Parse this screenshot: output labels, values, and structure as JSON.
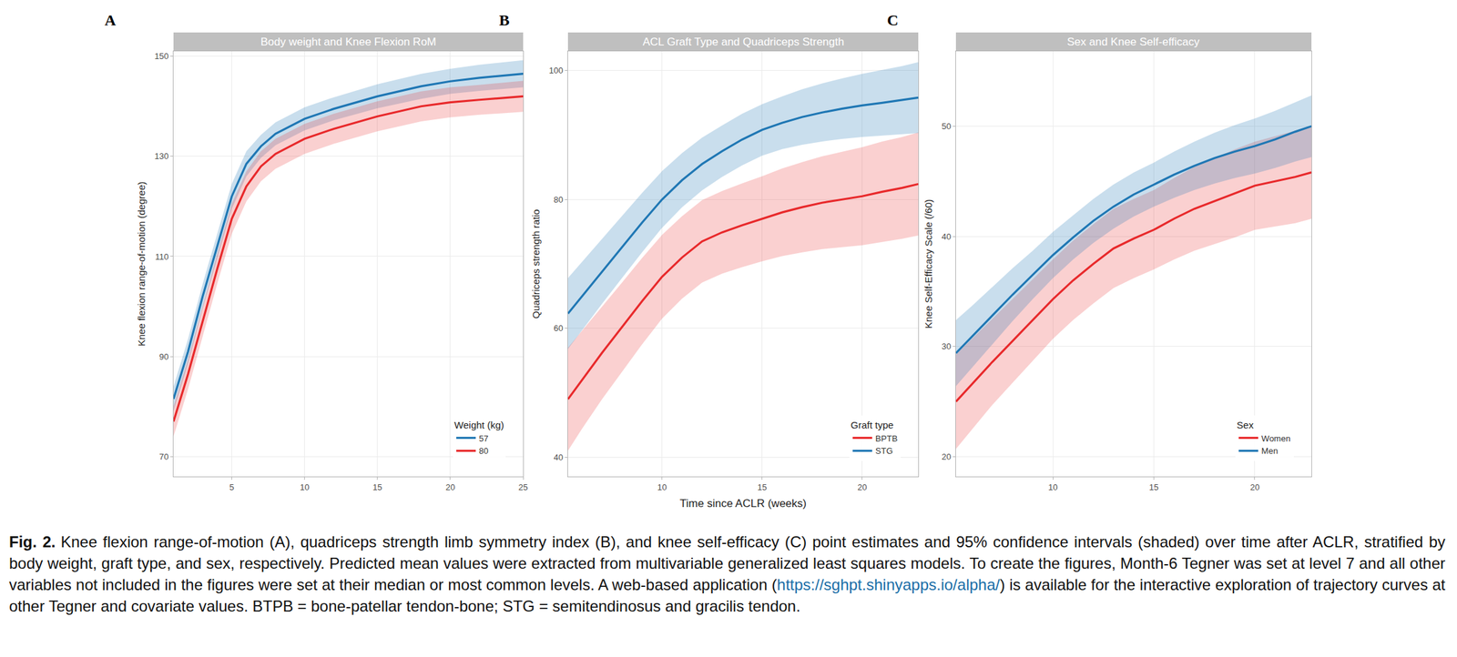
{
  "chart_data": [
    {
      "type": "line",
      "panel": "A",
      "title": "Body weight and Knee Flexion RoM",
      "y_label": "Knee flexion range-of-motion (degree)",
      "x": [
        1,
        2,
        3,
        4,
        5,
        6,
        7,
        8,
        9,
        10,
        12,
        15,
        18,
        20,
        22,
        25
      ],
      "xlim": [
        1,
        25
      ],
      "xticks": [
        5,
        10,
        15,
        20,
        25
      ],
      "ylim": [
        66,
        151
      ],
      "yticks": [
        70,
        90,
        110,
        130,
        150
      ],
      "grid": true,
      "legend": "bottom right",
      "legend_title": "Weight (kg)",
      "series": [
        {
          "name": "57",
          "color": "#1f77b4",
          "values": [
            81.5,
            91,
            102,
            112,
            122,
            128.5,
            132,
            134.5,
            136,
            137.5,
            139.5,
            142,
            144,
            145,
            145.7,
            146.5
          ],
          "lower": [
            79,
            88.5,
            99.5,
            109.5,
            119.5,
            126,
            129.7,
            132.2,
            133.7,
            135.2,
            137.2,
            139.6,
            141.5,
            142.5,
            143.1,
            143.8
          ],
          "upper": [
            84,
            93.5,
            104.5,
            114.5,
            124.5,
            131,
            134.3,
            136.8,
            138.3,
            139.8,
            141.8,
            144.4,
            146.5,
            147.5,
            148.3,
            149.2
          ]
        },
        {
          "name": "80",
          "color": "#e8292b",
          "values": [
            77,
            86.5,
            97,
            107.5,
            117.5,
            124,
            128,
            130.5,
            132,
            133.5,
            135.5,
            138,
            140,
            140.8,
            141.3,
            142
          ],
          "lower": [
            74,
            83.5,
            94,
            104.5,
            114.5,
            121,
            125,
            127.5,
            129,
            130.5,
            132.5,
            135,
            137,
            137.8,
            138.3,
            138.9
          ],
          "upper": [
            80,
            89.5,
            100,
            110.5,
            120.5,
            127,
            131,
            133.5,
            135,
            136.5,
            138.5,
            141,
            143,
            143.8,
            144.3,
            145.1
          ]
        }
      ]
    },
    {
      "type": "line",
      "panel": "B",
      "title": "ACL Graft Type and Quadriceps Strength",
      "x_label": "Time since ACLR (weeks)",
      "y_label": "Quadriceps strength ratio",
      "x": [
        5.3,
        6,
        7,
        8,
        9,
        10,
        11,
        12,
        13,
        14,
        15,
        16,
        17,
        18,
        19,
        20,
        21,
        22,
        22.8
      ],
      "xlim": [
        5.3,
        22.8
      ],
      "xticks": [
        10,
        15,
        20
      ],
      "ylim": [
        37,
        103
      ],
      "yticks": [
        40,
        60,
        80,
        100
      ],
      "grid": true,
      "legend": "bottom right",
      "legend_title": "Graft type",
      "series": [
        {
          "name": "BPTB",
          "color": "#e8292b",
          "values": [
            49,
            52,
            56.2,
            60.2,
            64.2,
            68,
            71,
            73.5,
            74.9,
            76,
            77,
            78,
            78.8,
            79.5,
            80,
            80.5,
            81.2,
            81.8,
            82.4
          ],
          "lower": [
            41,
            44.4,
            49,
            53.3,
            57.5,
            61.5,
            64.6,
            67.1,
            68.5,
            69.5,
            70.4,
            71.2,
            71.8,
            72.3,
            72.6,
            72.9,
            73.4,
            73.9,
            74.4
          ],
          "upper": [
            57,
            59.6,
            63.4,
            67.1,
            70.9,
            74.5,
            77.4,
            79.9,
            81.3,
            82.5,
            83.6,
            84.8,
            85.8,
            86.7,
            87.4,
            88.1,
            89,
            89.7,
            90.4
          ]
        },
        {
          "name": "STG",
          "color": "#1f77b4",
          "values": [
            62.3,
            65,
            68.8,
            72.6,
            76.4,
            80,
            83,
            85.5,
            87.5,
            89.3,
            90.8,
            91.9,
            92.8,
            93.5,
            94.1,
            94.6,
            95,
            95.4,
            95.8
          ],
          "lower": [
            56.8,
            59.7,
            63.8,
            67.8,
            71.8,
            75.6,
            78.8,
            81.4,
            83.5,
            85.3,
            86.8,
            87.8,
            88.5,
            89,
            89.4,
            89.7,
            89.9,
            90.1,
            90.3
          ],
          "upper": [
            67.8,
            70.3,
            73.8,
            77.4,
            81,
            84.4,
            87.2,
            89.6,
            91.5,
            93.3,
            94.8,
            96,
            97.1,
            98,
            98.8,
            99.5,
            100.1,
            100.7,
            101.3
          ]
        }
      ]
    },
    {
      "type": "line",
      "panel": "C",
      "title": "Sex and Knee Self-efficacy",
      "y_label": "Knee Self-Efficacy Scale (/60)",
      "x": [
        5.2,
        6,
        7,
        8,
        9,
        10,
        11,
        12,
        13,
        14,
        15,
        16,
        17,
        18,
        19,
        20,
        21,
        22,
        22.8
      ],
      "xlim": [
        5.2,
        22.8
      ],
      "xticks": [
        10,
        15,
        20
      ],
      "ylim": [
        18.2,
        56.8
      ],
      "yticks": [
        20,
        30,
        40,
        50
      ],
      "grid": true,
      "legend": "bottom right",
      "legend_title": "Sex",
      "series": [
        {
          "name": "Women",
          "color": "#e8292b",
          "values": [
            25,
            26.6,
            28.6,
            30.5,
            32.4,
            34.3,
            36,
            37.5,
            38.9,
            39.8,
            40.6,
            41.6,
            42.5,
            43.2,
            43.9,
            44.6,
            45,
            45.4,
            45.8
          ],
          "lower": [
            20.7,
            22.5,
            24.7,
            26.7,
            28.7,
            30.7,
            32.4,
            33.9,
            35.3,
            36.2,
            37,
            37.9,
            38.7,
            39.3,
            39.9,
            40.6,
            40.9,
            41.2,
            41.6
          ],
          "upper": [
            29.3,
            30.7,
            32.5,
            34.3,
            36.1,
            37.9,
            39.6,
            41.1,
            42.5,
            43.4,
            44.2,
            45.3,
            46.3,
            47.1,
            47.9,
            48.6,
            49.1,
            49.6,
            50
          ]
        },
        {
          "name": "Men",
          "color": "#1f77b4",
          "values": [
            29.4,
            30.9,
            32.8,
            34.7,
            36.5,
            38.3,
            39.9,
            41.4,
            42.7,
            43.8,
            44.7,
            45.6,
            46.4,
            47.1,
            47.7,
            48.2,
            48.8,
            49.5,
            50
          ],
          "lower": [
            26.4,
            28.1,
            30.2,
            32.3,
            34.3,
            36.2,
            37.9,
            39.4,
            40.7,
            41.8,
            42.7,
            43.5,
            44.2,
            44.8,
            45.3,
            45.7,
            46.2,
            46.8,
            47.2
          ],
          "upper": [
            32.4,
            33.7,
            35.4,
            37.1,
            38.7,
            40.4,
            41.9,
            43.4,
            44.7,
            45.8,
            46.7,
            47.7,
            48.6,
            49.4,
            50.1,
            50.7,
            51.4,
            52.2,
            52.8
          ]
        }
      ]
    }
  ],
  "caption": {
    "label": "Fig. 2.",
    "text_before": "Knee flexion range-of-motion (A), quadriceps strength limb symmetry index (B), and knee self-efficacy (C) point estimates and 95% confidence intervals (shaded) over time after ACLR, stratified by body weight, graft type, and sex, respectively. Predicted mean values were extracted from multivariable generalized least squares models. To create the figures, Month-6 Tegner was set at level 7 and all other variables not included in the figures were set at their median or most common levels. A web-based application (",
    "link": "https://sghpt.shinyapps.io/alpha/",
    "text_after": ") is available for the interactive exploration of trajectory curves at other Tegner and covariate values. BTPB = bone-patellar tendon-bone; STG = semitendinosus and gracilis tendon."
  }
}
